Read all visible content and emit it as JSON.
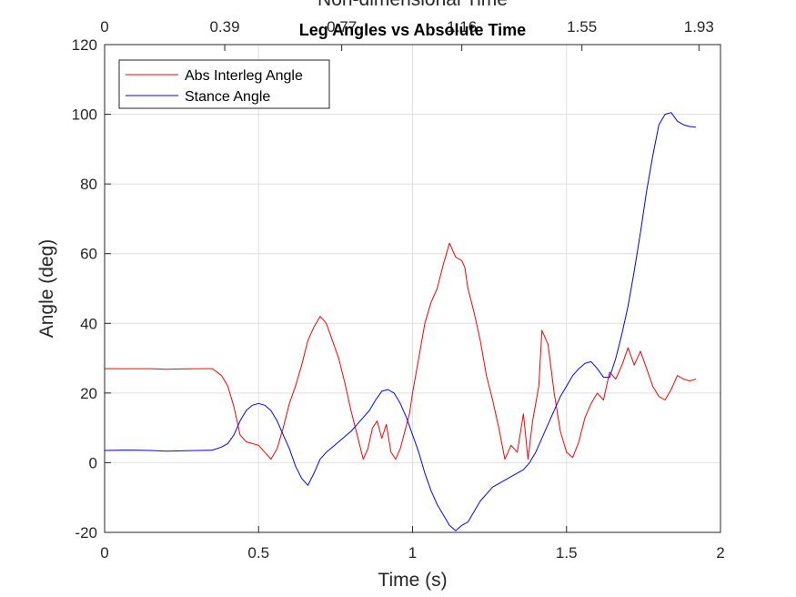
{
  "chart_data": {
    "type": "line",
    "title": "Leg Angles vs Absolute Time",
    "top_axis_label": "Non-dimensional Time",
    "top_ticks": [
      "0",
      "0.39",
      "0.77",
      "1.16",
      "1.55",
      "1.93"
    ],
    "xlabel": "Time (s)",
    "ylabel": "Angle (deg)",
    "xlim": [
      0,
      2
    ],
    "ylim": [
      -20,
      120
    ],
    "xticks": [
      0,
      0.5,
      1,
      1.5,
      2
    ],
    "xtick_labels": [
      "0",
      "0.5",
      "1",
      "1.5",
      "2"
    ],
    "yticks": [
      -20,
      0,
      20,
      40,
      60,
      80,
      100,
      120
    ],
    "ytick_labels": [
      "-20",
      "0",
      "20",
      "40",
      "60",
      "80",
      "100",
      "120"
    ],
    "grid": true,
    "legend": "top-left",
    "series": [
      {
        "name": "Abs Interleg Angle",
        "color": "#ff0000",
        "x": [
          0,
          0.05,
          0.1,
          0.15,
          0.2,
          0.25,
          0.3,
          0.35,
          0.38,
          0.4,
          0.42,
          0.44,
          0.46,
          0.48,
          0.5,
          0.52,
          0.54,
          0.56,
          0.58,
          0.6,
          0.62,
          0.64,
          0.66,
          0.68,
          0.7,
          0.72,
          0.74,
          0.76,
          0.78,
          0.8,
          0.82,
          0.84,
          0.855,
          0.87,
          0.885,
          0.9,
          0.915,
          0.93,
          0.945,
          0.96,
          0.975,
          0.99,
          1.0,
          1.02,
          1.04,
          1.06,
          1.08,
          1.1,
          1.12,
          1.14,
          1.16,
          1.17,
          1.18,
          1.2,
          1.22,
          1.24,
          1.26,
          1.28,
          1.3,
          1.32,
          1.34,
          1.36,
          1.375,
          1.39,
          1.41,
          1.42,
          1.44,
          1.46,
          1.48,
          1.5,
          1.52,
          1.54,
          1.56,
          1.58,
          1.6,
          1.62,
          1.64,
          1.66,
          1.68,
          1.7,
          1.72,
          1.74,
          1.76,
          1.78,
          1.8,
          1.82,
          1.84,
          1.86,
          1.88,
          1.9,
          1.92
        ],
        "y": [
          27,
          27,
          27,
          27,
          26.8,
          26.9,
          27,
          27,
          25,
          22,
          16,
          8,
          6,
          5.5,
          5,
          3,
          1,
          4,
          10,
          17,
          22,
          28,
          35,
          39,
          42,
          40,
          35,
          30,
          23,
          15,
          8,
          1,
          4,
          10,
          12,
          7,
          11,
          3,
          1,
          4,
          9,
          14,
          20,
          30,
          40,
          46,
          50,
          57,
          63,
          59,
          58,
          56,
          50,
          43,
          35,
          25,
          18,
          10,
          1,
          5,
          3,
          14,
          1,
          12,
          22,
          38,
          34,
          20,
          9,
          3,
          1.5,
          6,
          13,
          17,
          20,
          18,
          26,
          24,
          28,
          33,
          28,
          32,
          27,
          22,
          19,
          18,
          21,
          25,
          24,
          23.5,
          24
        ]
      },
      {
        "name": "Stance Angle",
        "color": "#0000ff",
        "x": [
          0,
          0.05,
          0.1,
          0.15,
          0.2,
          0.25,
          0.3,
          0.35,
          0.38,
          0.4,
          0.42,
          0.44,
          0.46,
          0.48,
          0.5,
          0.52,
          0.54,
          0.56,
          0.58,
          0.6,
          0.62,
          0.64,
          0.66,
          0.68,
          0.7,
          0.72,
          0.74,
          0.76,
          0.78,
          0.8,
          0.82,
          0.84,
          0.86,
          0.88,
          0.9,
          0.92,
          0.94,
          0.96,
          0.98,
          1.0,
          1.02,
          1.04,
          1.06,
          1.08,
          1.1,
          1.12,
          1.14,
          1.16,
          1.18,
          1.2,
          1.22,
          1.24,
          1.26,
          1.28,
          1.3,
          1.32,
          1.34,
          1.36,
          1.38,
          1.4,
          1.42,
          1.44,
          1.46,
          1.48,
          1.5,
          1.52,
          1.54,
          1.56,
          1.58,
          1.6,
          1.62,
          1.64,
          1.66,
          1.68,
          1.7,
          1.72,
          1.74,
          1.76,
          1.78,
          1.8,
          1.82,
          1.84,
          1.86,
          1.88,
          1.9,
          1.92
        ],
        "y": [
          3.5,
          3.6,
          3.6,
          3.5,
          3.3,
          3.4,
          3.5,
          3.6,
          4.5,
          5.5,
          8,
          12,
          15,
          16.5,
          17,
          16.5,
          15,
          12,
          8,
          4,
          -1,
          -4.5,
          -6.5,
          -3,
          1,
          3,
          4.5,
          6,
          7.5,
          9,
          11,
          13,
          15,
          18,
          20.5,
          21,
          20,
          17,
          13,
          8,
          3,
          -3,
          -8,
          -12,
          -15,
          -18,
          -19.5,
          -18,
          -17,
          -14,
          -11,
          -9,
          -7,
          -6,
          -5,
          -4,
          -3,
          -2,
          0,
          3,
          7,
          11,
          15,
          19,
          22,
          25,
          27,
          28.5,
          29,
          27,
          24.5,
          24.5,
          30,
          37,
          45,
          55,
          66,
          78,
          88,
          97,
          100,
          100.5,
          98,
          97,
          96.5,
          96.3
        ]
      }
    ]
  }
}
